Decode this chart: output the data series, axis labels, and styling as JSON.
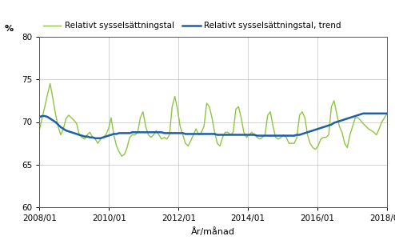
{
  "ylabel": "%",
  "xlabel": "År/månad",
  "ylim": [
    60,
    80
  ],
  "yticks": [
    60,
    65,
    70,
    75,
    80
  ],
  "xtick_labels": [
    "2008/01",
    "2010/01",
    "2012/01",
    "2014/01",
    "2016/01",
    "2018/01"
  ],
  "line_color": "#8dc63f",
  "trend_color": "#1f5ea8",
  "line_label": "Relativt sysselsättningstal",
  "trend_label": "Relativt sysselsättningstal, trend",
  "background_color": "#ffffff",
  "grid_color": "#c0c0c0",
  "raw_values": [
    69.1,
    70.5,
    71.8,
    73.2,
    74.5,
    72.8,
    71.0,
    69.5,
    68.5,
    69.2,
    70.4,
    70.8,
    70.5,
    70.2,
    69.8,
    68.5,
    68.2,
    68.0,
    68.5,
    68.8,
    68.2,
    68.0,
    67.5,
    68.0,
    68.2,
    68.5,
    69.2,
    70.5,
    68.5,
    67.2,
    66.5,
    66.0,
    66.2,
    67.0,
    68.2,
    68.5,
    68.5,
    68.8,
    70.5,
    71.2,
    69.5,
    68.5,
    68.2,
    68.5,
    69.0,
    68.5,
    68.0,
    68.2,
    68.0,
    68.5,
    71.8,
    73.0,
    71.5,
    69.5,
    68.5,
    67.5,
    67.2,
    67.8,
    68.5,
    69.2,
    68.5,
    68.8,
    69.5,
    72.2,
    71.8,
    70.5,
    68.8,
    67.5,
    67.2,
    68.2,
    68.8,
    68.8,
    68.5,
    68.8,
    71.5,
    71.8,
    70.5,
    68.8,
    68.2,
    68.5,
    68.8,
    68.5,
    68.2,
    68.0,
    68.2,
    68.5,
    70.8,
    71.2,
    69.5,
    68.2,
    68.0,
    68.2,
    68.5,
    68.2,
    67.5,
    67.5,
    67.5,
    68.2,
    70.8,
    71.2,
    70.5,
    68.5,
    67.5,
    67.0,
    66.8,
    67.2,
    68.0,
    68.2,
    68.2,
    68.5,
    71.8,
    72.5,
    71.0,
    69.5,
    68.8,
    67.5,
    67.0,
    68.5,
    69.5,
    70.5,
    70.5,
    70.2,
    69.8,
    69.5,
    69.2,
    69.0,
    68.8,
    68.5,
    69.2,
    70.0,
    70.5,
    71.0
  ],
  "trend_values": [
    70.6,
    70.7,
    70.7,
    70.6,
    70.4,
    70.2,
    70.0,
    69.7,
    69.4,
    69.2,
    69.0,
    68.9,
    68.8,
    68.7,
    68.6,
    68.5,
    68.4,
    68.3,
    68.3,
    68.2,
    68.2,
    68.1,
    68.1,
    68.1,
    68.2,
    68.3,
    68.4,
    68.5,
    68.6,
    68.6,
    68.7,
    68.7,
    68.7,
    68.7,
    68.7,
    68.8,
    68.8,
    68.8,
    68.8,
    68.8,
    68.8,
    68.8,
    68.8,
    68.8,
    68.8,
    68.8,
    68.8,
    68.7,
    68.7,
    68.7,
    68.7,
    68.7,
    68.7,
    68.7,
    68.7,
    68.6,
    68.6,
    68.6,
    68.6,
    68.6,
    68.6,
    68.6,
    68.6,
    68.6,
    68.6,
    68.6,
    68.6,
    68.5,
    68.5,
    68.5,
    68.5,
    68.5,
    68.5,
    68.5,
    68.5,
    68.5,
    68.5,
    68.5,
    68.5,
    68.5,
    68.5,
    68.5,
    68.4,
    68.4,
    68.4,
    68.4,
    68.4,
    68.4,
    68.4,
    68.4,
    68.4,
    68.4,
    68.4,
    68.4,
    68.4,
    68.4,
    68.4,
    68.5,
    68.5,
    68.6,
    68.7,
    68.8,
    68.9,
    69.0,
    69.1,
    69.2,
    69.3,
    69.4,
    69.5,
    69.6,
    69.7,
    69.9,
    70.0,
    70.1,
    70.2,
    70.3,
    70.4,
    70.5,
    70.6,
    70.7,
    70.8,
    70.9,
    71.0,
    71.0,
    71.0,
    71.0,
    71.0,
    71.0,
    71.0,
    71.0,
    71.0,
    71.0
  ]
}
